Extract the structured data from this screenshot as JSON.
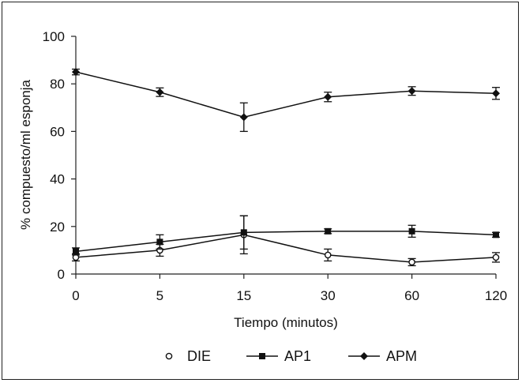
{
  "chart_data": {
    "type": "line",
    "title": "",
    "xlabel": "Tiempo (minutos)",
    "ylabel": "% compuesto/ml esponja",
    "categories": [
      "0",
      "5",
      "15",
      "30",
      "60",
      "120"
    ],
    "ylim": [
      0,
      100
    ],
    "yticks": [
      0,
      20,
      40,
      60,
      80,
      100
    ],
    "grid": false,
    "legend_position": "bottom",
    "series": [
      {
        "name": "DIE",
        "marker": "circle-open",
        "values": [
          7,
          10,
          16.5,
          8,
          5,
          7
        ],
        "errors": [
          1.5,
          2.5,
          8,
          2.5,
          1.5,
          2
        ]
      },
      {
        "name": "AP1",
        "marker": "square",
        "values": [
          9.5,
          13.5,
          17.5,
          18,
          18,
          16.5
        ],
        "errors": [
          1.5,
          3,
          7,
          1,
          2.5,
          1
        ]
      },
      {
        "name": "APM",
        "marker": "diamond",
        "values": [
          85,
          76.5,
          66,
          74.5,
          77,
          76
        ],
        "errors": [
          1.2,
          1.8,
          6,
          2,
          1.8,
          2.5
        ]
      }
    ]
  }
}
